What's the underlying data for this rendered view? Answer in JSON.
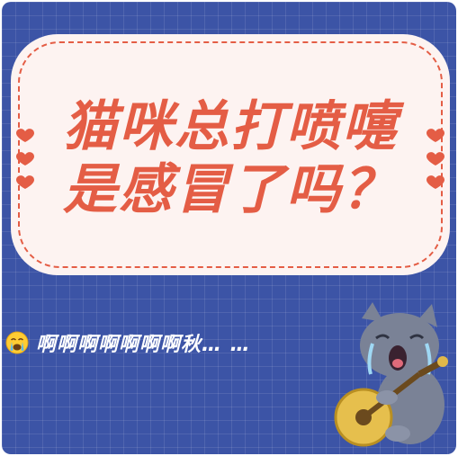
{
  "title": {
    "line1": "猫咪总打喷嚏",
    "line2": "是感冒了吗？"
  },
  "caption": {
    "emoji_icon": "crying-face-icon",
    "text": "啊啊啊啊啊啊啊秋…  …"
  },
  "sticker": {
    "icon": "crying-cat-with-guitar-icon"
  },
  "colors": {
    "background": "#3c54a6",
    "card": "#fdf3f1",
    "accent": "#e45d45"
  }
}
